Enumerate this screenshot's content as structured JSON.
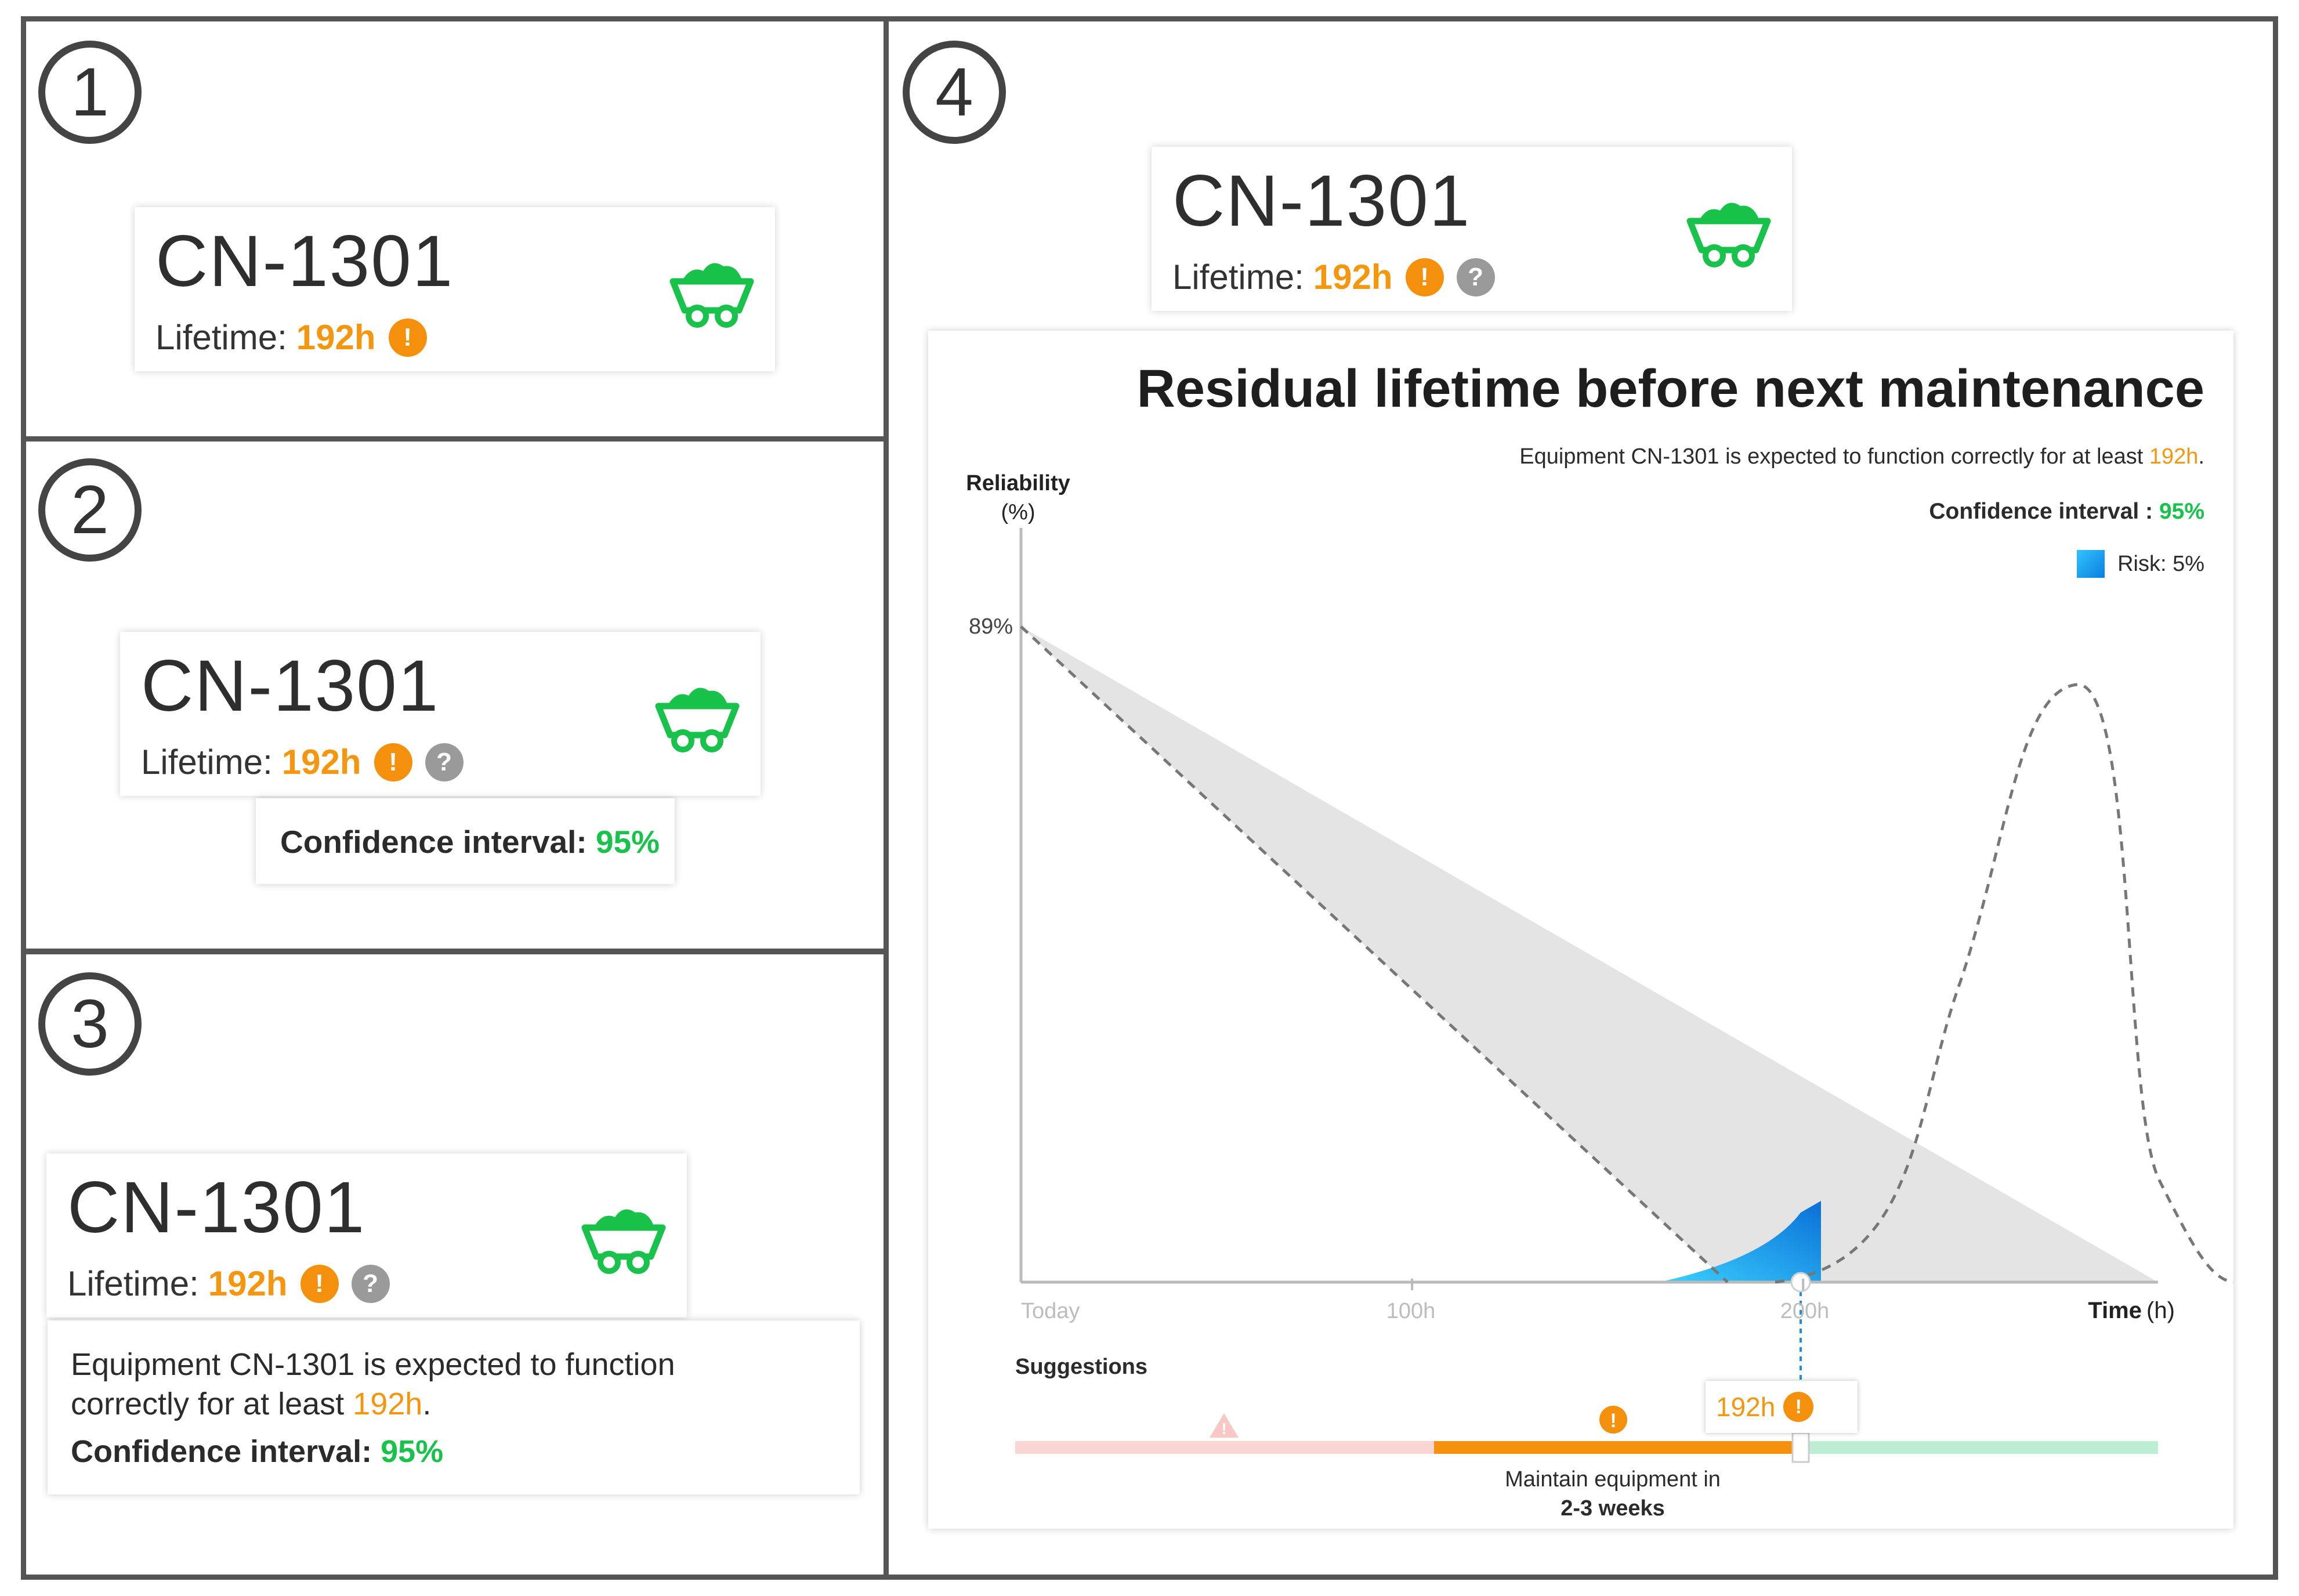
{
  "steps": [
    "1",
    "2",
    "3",
    "4"
  ],
  "equipment": {
    "code": "CN-1301",
    "lifetime_label": "Lifetime:",
    "lifetime_value": "192h"
  },
  "badges": {
    "warning": "!",
    "help": "?"
  },
  "tooltip_small": {
    "label": "Confidence interval:",
    "value": "95%"
  },
  "tooltip_large": {
    "line1": "Equipment CN-1301 is expected to function",
    "line2_prefix": "correctly for at least ",
    "line2_value": "192h",
    "line2_suffix": ".",
    "ci_label": "Confidence interval:",
    "ci_value": "95%"
  },
  "detail": {
    "title": "Residual lifetime before next maintenance",
    "desc_prefix": "Equipment CN-1301 is expected to function correctly for at least ",
    "desc_value": "192h",
    "desc_suffix": ".",
    "ci_label": "Confidence interval : ",
    "ci_value": "95%",
    "risk_label": "Risk: 5%",
    "suggestions_label": "Suggestions",
    "marker_label": "192h",
    "maintain_line1": "Maintain equipment in",
    "maintain_line2": "2-3 weeks"
  },
  "chart_data": {
    "type": "area",
    "ylabel_line1": "Reliability",
    "ylabel_line2": "(%)",
    "xlabel_bold": "Time",
    "xlabel_unit": "(h)",
    "x_ticks": [
      "Today",
      "100h",
      "200h"
    ],
    "y_ticks": [
      "89%"
    ],
    "x_range": [
      0,
      280
    ],
    "series": [
      {
        "reliability_start_pct": 89,
        "reliability_end_x": 174
      },
      {
        "reliability_start_pct": 89,
        "reliability_end_x": 280
      },
      {
        "marker_x": 192
      }
    ],
    "colors": {
      "band": "#e4e4e4",
      "risk": "#1aa0ee",
      "dash": "#777777"
    }
  },
  "suggestion_bar": {
    "colors": {
      "danger": "#f9d5d3",
      "warning": "#f5900c",
      "ok": "#bdeed3"
    }
  }
}
